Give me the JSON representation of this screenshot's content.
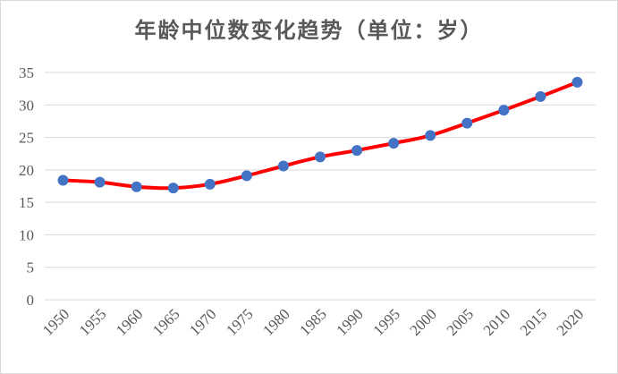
{
  "chart_data": {
    "type": "line",
    "title": "年龄中位数变化趋势（单位：岁）",
    "xlabel": "",
    "ylabel": "",
    "x": [
      "1950",
      "1955",
      "1960",
      "1965",
      "1970",
      "1975",
      "1980",
      "1985",
      "1990",
      "1995",
      "2000",
      "2005",
      "2010",
      "2015",
      "2020"
    ],
    "series": [
      {
        "values": [
          18.4,
          18.1,
          17.4,
          17.2,
          17.8,
          19.1,
          20.6,
          22.0,
          23.0,
          24.1,
          25.3,
          27.2,
          29.2,
          31.3,
          33.5
        ]
      }
    ],
    "ylim": [
      0,
      35
    ],
    "yticks": [
      "0",
      "5",
      "10",
      "15",
      "20",
      "25",
      "30",
      "35"
    ],
    "grid": true,
    "legend": "none",
    "line_color": "#ff0000",
    "marker_color": "#4472c4",
    "grid_color": "#d9d9d9",
    "text_color": "#595959"
  }
}
